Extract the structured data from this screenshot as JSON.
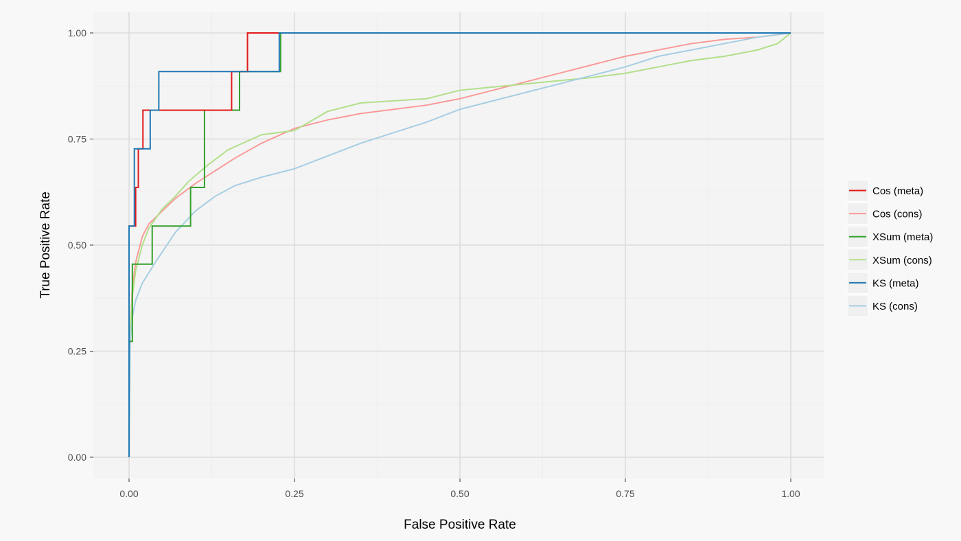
{
  "chart_data": {
    "type": "line",
    "title": "",
    "xlabel": "False Positive Rate",
    "ylabel": "True Positive Rate",
    "xlim": [
      0,
      1
    ],
    "ylim": [
      0,
      1
    ],
    "x_ticks": [
      "0.00",
      "0.25",
      "0.50",
      "0.75",
      "1.00"
    ],
    "y_ticks": [
      "0.00",
      "0.25",
      "0.50",
      "0.75",
      "1.00"
    ],
    "grid": true,
    "legend_position": "right",
    "series": [
      {
        "name": "Cos (meta)",
        "color": "#e31a1c",
        "step": true,
        "points": [
          [
            0,
            0
          ],
          [
            0,
            0.545
          ],
          [
            0.01,
            0.545
          ],
          [
            0.01,
            0.636
          ],
          [
            0.014,
            0.636
          ],
          [
            0.014,
            0.727
          ],
          [
            0.021,
            0.727
          ],
          [
            0.021,
            0.818
          ],
          [
            0.155,
            0.818
          ],
          [
            0.155,
            0.909
          ],
          [
            0.179,
            0.909
          ],
          [
            0.179,
            1
          ],
          [
            1,
            1
          ]
        ]
      },
      {
        "name": "Cos (cons)",
        "color": "#fb9a99",
        "step": false,
        "points": [
          [
            0,
            0
          ],
          [
            0.002,
            0.3
          ],
          [
            0.005,
            0.4
          ],
          [
            0.01,
            0.46
          ],
          [
            0.02,
            0.52
          ],
          [
            0.03,
            0.55
          ],
          [
            0.05,
            0.58
          ],
          [
            0.07,
            0.61
          ],
          [
            0.1,
            0.645
          ],
          [
            0.13,
            0.675
          ],
          [
            0.16,
            0.705
          ],
          [
            0.2,
            0.74
          ],
          [
            0.25,
            0.775
          ],
          [
            0.3,
            0.795
          ],
          [
            0.35,
            0.81
          ],
          [
            0.4,
            0.82
          ],
          [
            0.45,
            0.83
          ],
          [
            0.5,
            0.845
          ],
          [
            0.55,
            0.865
          ],
          [
            0.6,
            0.885
          ],
          [
            0.65,
            0.905
          ],
          [
            0.7,
            0.925
          ],
          [
            0.75,
            0.945
          ],
          [
            0.8,
            0.96
          ],
          [
            0.85,
            0.975
          ],
          [
            0.9,
            0.985
          ],
          [
            0.95,
            0.99
          ],
          [
            1,
            1
          ]
        ]
      },
      {
        "name": "XSum (meta)",
        "color": "#33a02c",
        "step": true,
        "points": [
          [
            0,
            0
          ],
          [
            0,
            0.273
          ],
          [
            0.005,
            0.273
          ],
          [
            0.005,
            0.455
          ],
          [
            0.035,
            0.455
          ],
          [
            0.035,
            0.545
          ],
          [
            0.093,
            0.545
          ],
          [
            0.093,
            0.636
          ],
          [
            0.114,
            0.636
          ],
          [
            0.114,
            0.818
          ],
          [
            0.167,
            0.818
          ],
          [
            0.167,
            0.909
          ],
          [
            0.229,
            0.909
          ],
          [
            0.229,
            1
          ],
          [
            1,
            1
          ]
        ]
      },
      {
        "name": "XSum (cons)",
        "color": "#b2df8a",
        "step": false,
        "points": [
          [
            0,
            0
          ],
          [
            0.002,
            0.3
          ],
          [
            0.005,
            0.38
          ],
          [
            0.01,
            0.44
          ],
          [
            0.02,
            0.5
          ],
          [
            0.03,
            0.54
          ],
          [
            0.05,
            0.585
          ],
          [
            0.07,
            0.615
          ],
          [
            0.09,
            0.65
          ],
          [
            0.12,
            0.69
          ],
          [
            0.15,
            0.725
          ],
          [
            0.2,
            0.76
          ],
          [
            0.25,
            0.77
          ],
          [
            0.3,
            0.815
          ],
          [
            0.35,
            0.835
          ],
          [
            0.4,
            0.84
          ],
          [
            0.45,
            0.845
          ],
          [
            0.5,
            0.865
          ],
          [
            0.6,
            0.88
          ],
          [
            0.7,
            0.895
          ],
          [
            0.75,
            0.905
          ],
          [
            0.8,
            0.92
          ],
          [
            0.85,
            0.935
          ],
          [
            0.9,
            0.945
          ],
          [
            0.95,
            0.96
          ],
          [
            0.98,
            0.975
          ],
          [
            1,
            1
          ]
        ]
      },
      {
        "name": "KS (meta)",
        "color": "#1f78b4",
        "step": true,
        "points": [
          [
            0,
            0
          ],
          [
            0,
            0.545
          ],
          [
            0.008,
            0.545
          ],
          [
            0.008,
            0.727
          ],
          [
            0.017,
            0.727
          ],
          [
            0.017,
            0.727
          ],
          [
            0.032,
            0.727
          ],
          [
            0.032,
            0.818
          ],
          [
            0.045,
            0.818
          ],
          [
            0.045,
            0.909
          ],
          [
            0.227,
            0.909
          ],
          [
            0.227,
            1
          ],
          [
            1,
            1
          ]
        ]
      },
      {
        "name": "KS (cons)",
        "color": "#a6cee3",
        "step": false,
        "points": [
          [
            0,
            0
          ],
          [
            0.002,
            0.28
          ],
          [
            0.005,
            0.33
          ],
          [
            0.01,
            0.37
          ],
          [
            0.02,
            0.41
          ],
          [
            0.04,
            0.46
          ],
          [
            0.07,
            0.53
          ],
          [
            0.1,
            0.58
          ],
          [
            0.13,
            0.615
          ],
          [
            0.16,
            0.64
          ],
          [
            0.2,
            0.66
          ],
          [
            0.25,
            0.68
          ],
          [
            0.3,
            0.71
          ],
          [
            0.35,
            0.74
          ],
          [
            0.4,
            0.765
          ],
          [
            0.45,
            0.79
          ],
          [
            0.5,
            0.82
          ],
          [
            0.55,
            0.84
          ],
          [
            0.6,
            0.86
          ],
          [
            0.65,
            0.88
          ],
          [
            0.7,
            0.9
          ],
          [
            0.75,
            0.92
          ],
          [
            0.8,
            0.945
          ],
          [
            0.85,
            0.96
          ],
          [
            0.9,
            0.975
          ],
          [
            0.95,
            0.99
          ],
          [
            1,
            1
          ]
        ]
      }
    ]
  }
}
